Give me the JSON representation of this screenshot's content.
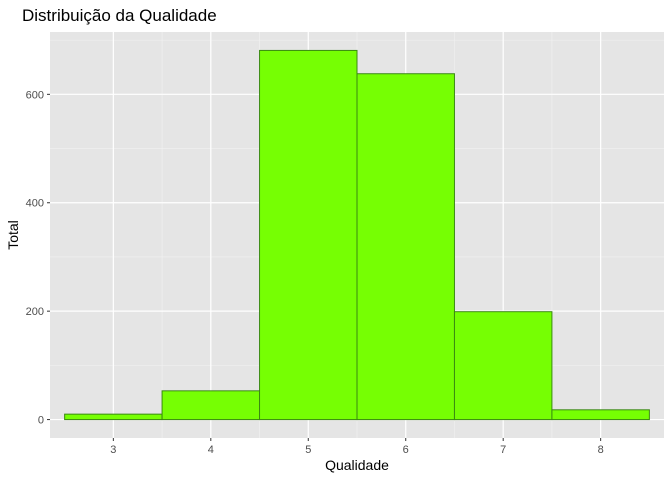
{
  "chart_data": {
    "type": "bar",
    "title": "Distribuição da Qualidade",
    "xlabel": "Qualidade",
    "ylabel": "Total",
    "categories": [
      3,
      4,
      5,
      6,
      7,
      8
    ],
    "values": [
      10,
      53,
      681,
      638,
      199,
      18
    ],
    "bin_width": 1,
    "xlim": [
      2.35,
      8.65
    ],
    "ylim": [
      -34,
      715
    ],
    "x_ticks": [
      "3",
      "4",
      "5",
      "6",
      "7",
      "8"
    ],
    "y_ticks": [
      "0",
      "200",
      "400",
      "600"
    ],
    "grid": true,
    "legend": "none",
    "colors": {
      "panel": "#e5e5e5",
      "grid_major": "#ffffff",
      "grid_minor": "#f2f2f2",
      "bar_fill": "#76ff03",
      "bar_stroke": "#3a8a12",
      "tick": "#333333",
      "tick_text": "#4d4d4d"
    }
  }
}
